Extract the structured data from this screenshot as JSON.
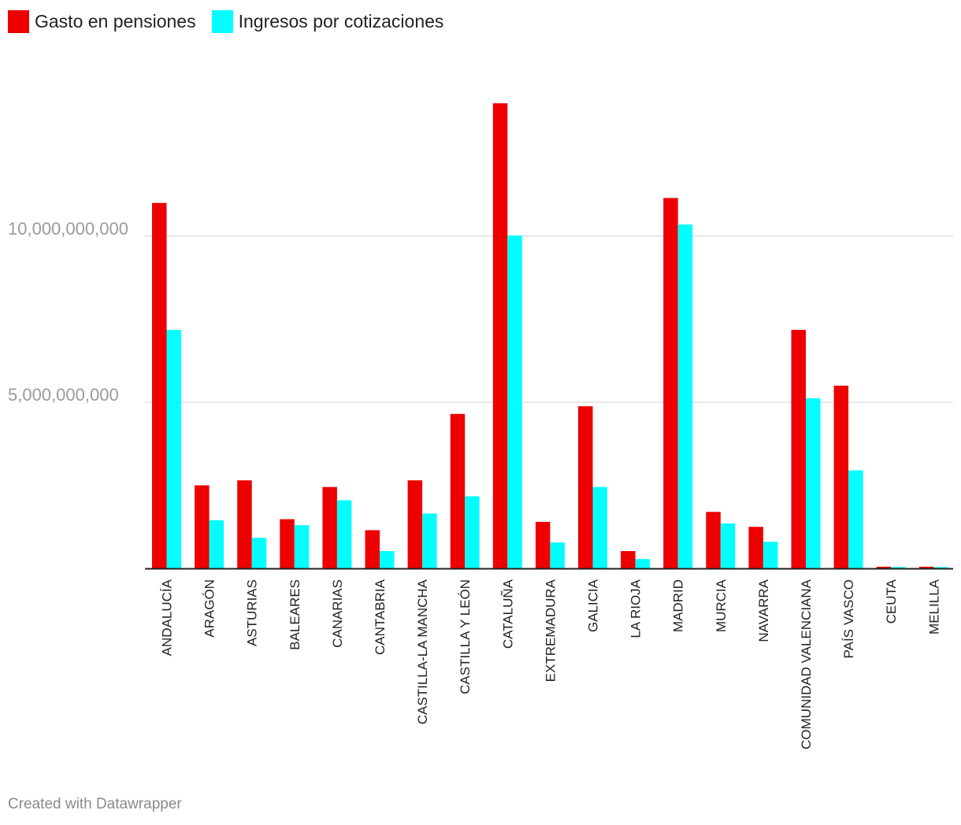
{
  "legend": {
    "items": [
      {
        "label": "Gasto en pensiones",
        "color": "#ef0000"
      },
      {
        "label": "Ingresos por cotizaciones",
        "color": "#00ffff"
      }
    ]
  },
  "footer": {
    "credit": "Created with Datawrapper"
  },
  "chart_data": {
    "type": "bar",
    "title": "",
    "xlabel": "",
    "ylabel": "",
    "ylim": [
      0,
      14300000000
    ],
    "yticks": [
      {
        "value": 5000000000,
        "label": "5,000,000,000"
      },
      {
        "value": 10000000000,
        "label": "10,000,000,000"
      }
    ],
    "grid": true,
    "legend_position": "top-left",
    "categories": [
      "ANDALUCÍA",
      "ARAGÓN",
      "ASTURIAS",
      "BALEARES",
      "CANARIAS",
      "CANTABRIA",
      "CASTILLA-LA MANCHA",
      "CASTILLA Y LEÓN",
      "CATALUÑA",
      "EXTREMADURA",
      "GALICIA",
      "LA RIOJA",
      "MADRID",
      "MURCIA",
      "NAVARRA",
      "COMUNIDAD VALENCIANA",
      "PAÍS VASCO",
      "CEUTA",
      "MELILLA"
    ],
    "series": [
      {
        "name": "Gasto en pensiones",
        "color": "#ef0000",
        "values": [
          11000000000,
          2500000000,
          2650000000,
          1480000000,
          2450000000,
          1150000000,
          2650000000,
          4650000000,
          14000000000,
          1400000000,
          4880000000,
          520000000,
          11150000000,
          1700000000,
          1250000000,
          7180000000,
          5500000000,
          50000000,
          50000000
        ]
      },
      {
        "name": "Ingresos por cotizaciones",
        "color": "#00ffff",
        "values": [
          7180000000,
          1450000000,
          920000000,
          1300000000,
          2050000000,
          520000000,
          1650000000,
          2170000000,
          10020000000,
          780000000,
          2450000000,
          280000000,
          10350000000,
          1350000000,
          800000000,
          5120000000,
          2950000000,
          40000000,
          40000000
        ]
      }
    ]
  }
}
